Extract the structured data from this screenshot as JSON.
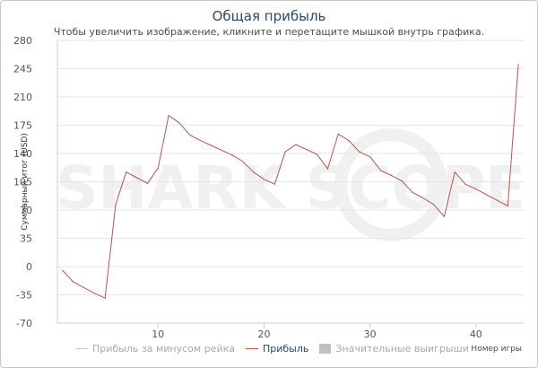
{
  "chart": {
    "title": "Общая прибыль",
    "subtitle": "Чтобы увеличить изображение, кликните и перетащите мышкой внутрь графика."
  },
  "colors": {
    "profit": "#b85450",
    "rake": "#c8c8c8",
    "big_wins": "#c0c0c0",
    "grid": "#e6e6e6",
    "axis_text": "#555555",
    "legend_active": "#274b6d",
    "legend_inactive": "#aaaaaa",
    "watermark": "#f0f0f0"
  },
  "watermark": {
    "text": "SHARK SCOPE"
  },
  "legend": [
    {
      "label": "Прибыль за минусом рейка",
      "kind": "line",
      "color": "#c8c8c8",
      "active": false
    },
    {
      "label": "Прибыль",
      "kind": "line",
      "color": "#b85450",
      "active": true
    },
    {
      "label": "Значительные выигрыши",
      "kind": "box",
      "color": "#c0c0c0",
      "active": false
    }
  ],
  "chart_data": {
    "type": "line",
    "title": "Общая прибыль",
    "subtitle": "Чтобы увеличить изображение, кликните и перетащите мышкой внутрь графика.",
    "xlabel": "Номер игры",
    "ylabel": "Суммарный итог (USD)",
    "xlim": [
      0.5,
      44.5
    ],
    "ylim": [
      -70,
      280
    ],
    "x_ticks": [
      10,
      20,
      30,
      40
    ],
    "y_ticks": [
      -70,
      -35,
      0,
      35,
      70,
      105,
      140,
      175,
      210,
      245,
      280
    ],
    "grid": true,
    "legend_position": "bottom",
    "series": [
      {
        "name": "Прибыль",
        "x": [
          1,
          2,
          3,
          4,
          5,
          6,
          7,
          8,
          9,
          10,
          11,
          12,
          13,
          14,
          15,
          16,
          17,
          18,
          19,
          20,
          21,
          22,
          23,
          24,
          25,
          26,
          27,
          28,
          29,
          30,
          31,
          32,
          33,
          34,
          35,
          36,
          37,
          38,
          39,
          40,
          41,
          42,
          43,
          44
        ],
        "values": [
          -5,
          -19,
          -26,
          -33,
          -39,
          77,
          117,
          110,
          103,
          122,
          187,
          178,
          163,
          156,
          150,
          144,
          138,
          130,
          117,
          108,
          102,
          142,
          151,
          145,
          139,
          121,
          164,
          156,
          142,
          136,
          119,
          113,
          106,
          92,
          85,
          77,
          62,
          117,
          102,
          96,
          89,
          82,
          75,
          250
        ]
      }
    ]
  }
}
